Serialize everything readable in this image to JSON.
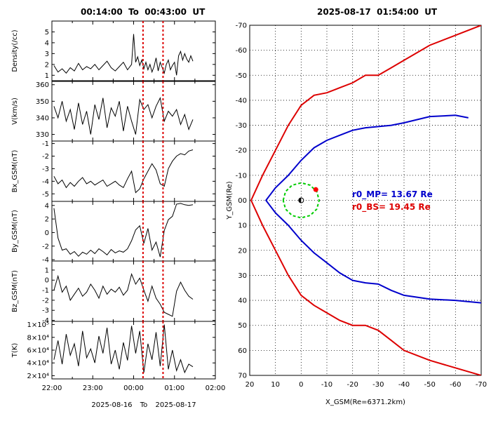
{
  "solar_wind_panel": {
    "title_start": "00:14:00",
    "title_to": "To",
    "title_end": "00:43:00",
    "title_unit": "UT",
    "date_start": "2025-08-16",
    "date_to": "To",
    "date_end": "2025-08-17"
  },
  "magnetosphere_panel": {
    "title_date": "2025-08-17",
    "title_time": "01:54:00",
    "title_unit": "UT",
    "mp_label": "r0_MP= 13.67 Re",
    "bs_label": "r0_BS= 19.45 Re"
  },
  "colors": {
    "magnetopause": "#0000cc",
    "bow_shock": "#dd0000",
    "marker_lines": "#dd0000",
    "orbit": "#00cc00",
    "satellite": "#ff0000",
    "grid": "#000000"
  },
  "chart_data": [
    {
      "type": "line",
      "ylabel": "Density(/cc)",
      "ylim": [
        0.5,
        6
      ],
      "yticks": [
        1,
        2,
        3,
        4,
        5
      ],
      "x_unit": "hours",
      "xlim": [
        22,
        26
      ],
      "xticks": [
        "22:00",
        "23:00",
        "00:00",
        "01:00",
        "02:00"
      ],
      "x_tick_values": [
        22,
        23,
        24,
        25,
        26
      ],
      "markers": [
        24.23,
        24.72
      ],
      "x": [
        22.05,
        22.15,
        22.25,
        22.35,
        22.45,
        22.55,
        22.65,
        22.75,
        22.85,
        22.95,
        23.05,
        23.15,
        23.25,
        23.35,
        23.45,
        23.55,
        23.65,
        23.75,
        23.85,
        23.95,
        24.0,
        24.05,
        24.1,
        24.15,
        24.2,
        24.25,
        24.3,
        24.35,
        24.4,
        24.45,
        24.5,
        24.55,
        24.6,
        24.65,
        24.7,
        24.75,
        24.8,
        24.85,
        24.9,
        24.95,
        25.0,
        25.05,
        25.1,
        25.15,
        25.2,
        25.25,
        25.3,
        25.35,
        25.4,
        25.45
      ],
      "values": [
        1.9,
        1.3,
        1.6,
        1.2,
        1.7,
        1.4,
        2.1,
        1.5,
        1.8,
        1.6,
        2.0,
        1.5,
        1.9,
        2.3,
        1.7,
        1.4,
        1.8,
        2.2,
        1.5,
        2.0,
        4.8,
        2.2,
        2.7,
        1.9,
        2.4,
        1.6,
        2.2,
        1.5,
        2.0,
        1.3,
        1.8,
        2.6,
        1.4,
        2.2,
        1.7,
        1.2,
        2.0,
        2.4,
        1.5,
        1.9,
        2.2,
        1.0,
        2.8,
        3.2,
        2.4,
        3.0,
        2.5,
        2.2,
        2.8,
        2.3
      ]
    },
    {
      "type": "line",
      "ylabel": "V(km/s)",
      "ylim": [
        326,
        362
      ],
      "yticks": [
        330,
        340,
        350,
        360
      ],
      "x_unit": "hours",
      "xlim": [
        22,
        26
      ],
      "markers": [
        24.23,
        24.72
      ],
      "x": [
        22.05,
        22.15,
        22.25,
        22.35,
        22.45,
        22.55,
        22.65,
        22.75,
        22.85,
        22.95,
        23.05,
        23.15,
        23.25,
        23.35,
        23.45,
        23.55,
        23.65,
        23.75,
        23.85,
        23.95,
        24.05,
        24.15,
        24.25,
        24.35,
        24.45,
        24.55,
        24.65,
        24.75,
        24.85,
        24.95,
        25.05,
        25.15,
        25.25,
        25.35,
        25.45
      ],
      "values": [
        347,
        340,
        350,
        338,
        345,
        333,
        349,
        336,
        344,
        330,
        348,
        339,
        352,
        334,
        346,
        341,
        350,
        332,
        347,
        338,
        330,
        351,
        345,
        348,
        340,
        347,
        352,
        338,
        344,
        341,
        345,
        336,
        342,
        333,
        339
      ]
    },
    {
      "type": "line",
      "ylabel": "Bx_GSM(nT)",
      "ylim": [
        -5.6,
        -0.8
      ],
      "yticks": [
        -5,
        -4,
        -3,
        -2,
        -1
      ],
      "x_unit": "hours",
      "xlim": [
        22,
        26
      ],
      "markers": [
        24.23,
        24.72
      ],
      "x": [
        22.05,
        22.15,
        22.25,
        22.35,
        22.45,
        22.55,
        22.65,
        22.75,
        22.85,
        22.95,
        23.05,
        23.15,
        23.25,
        23.35,
        23.45,
        23.55,
        23.65,
        23.75,
        23.85,
        23.95,
        24.05,
        24.15,
        24.25,
        24.35,
        24.45,
        24.55,
        24.65,
        24.75,
        24.85,
        24.95,
        25.05,
        25.15,
        25.25,
        25.35,
        25.45
      ],
      "values": [
        -3.6,
        -4.2,
        -3.9,
        -4.5,
        -4.1,
        -4.4,
        -4.0,
        -3.7,
        -4.2,
        -4.0,
        -4.3,
        -4.1,
        -3.9,
        -4.4,
        -4.2,
        -4.0,
        -4.3,
        -4.5,
        -3.8,
        -3.2,
        -4.9,
        -4.6,
        -3.8,
        -3.2,
        -2.6,
        -3.1,
        -4.2,
        -4.4,
        -3.0,
        -2.4,
        -2.0,
        -1.8,
        -1.9,
        -1.6,
        -1.5
      ]
    },
    {
      "type": "line",
      "ylabel": "By_GSM(nT)",
      "ylim": [
        -4.2,
        4.6
      ],
      "yticks": [
        -4,
        -2,
        0,
        2,
        4
      ],
      "x_unit": "hours",
      "xlim": [
        22,
        26
      ],
      "markers": [
        24.23,
        24.72
      ],
      "x": [
        22.05,
        22.15,
        22.25,
        22.35,
        22.45,
        22.55,
        22.65,
        22.75,
        22.85,
        22.95,
        23.05,
        23.15,
        23.25,
        23.35,
        23.45,
        23.55,
        23.65,
        23.75,
        23.85,
        23.95,
        24.05,
        24.15,
        24.25,
        24.35,
        24.45,
        24.55,
        24.65,
        24.75,
        24.85,
        24.95,
        25.05,
        25.15,
        25.25,
        25.35,
        25.45
      ],
      "values": [
        3.6,
        -0.8,
        -2.6,
        -2.4,
        -3.2,
        -2.8,
        -3.5,
        -2.9,
        -3.2,
        -2.6,
        -3.1,
        -2.4,
        -2.8,
        -3.3,
        -2.5,
        -3.0,
        -2.7,
        -2.9,
        -2.4,
        -1.2,
        0.4,
        1.0,
        -1.6,
        0.6,
        -2.6,
        -1.4,
        -3.6,
        0.3,
        1.9,
        2.4,
        4.2,
        4.3,
        4.1,
        4.0,
        4.1
      ]
    },
    {
      "type": "line",
      "ylabel": "Bz_GSM(nT)",
      "ylim": [
        -4.1,
        1.9
      ],
      "yticks": [
        -4,
        -3,
        -2,
        -1,
        0,
        1
      ],
      "x_unit": "hours",
      "xlim": [
        22,
        26
      ],
      "markers": [
        24.23,
        24.72
      ],
      "x": [
        22.05,
        22.15,
        22.25,
        22.35,
        22.45,
        22.55,
        22.65,
        22.75,
        22.85,
        22.95,
        23.05,
        23.15,
        23.25,
        23.35,
        23.45,
        23.55,
        23.65,
        23.75,
        23.85,
        23.95,
        24.05,
        24.15,
        24.25,
        24.35,
        24.45,
        24.55,
        24.65,
        24.75,
        24.85,
        24.95,
        25.05,
        25.15,
        25.25,
        25.35,
        25.45
      ],
      "values": [
        -1.0,
        0.4,
        -1.2,
        -0.6,
        -2.0,
        -1.4,
        -0.8,
        -1.6,
        -1.2,
        -0.4,
        -1.0,
        -1.8,
        -0.6,
        -1.4,
        -0.9,
        -1.2,
        -0.7,
        -1.5,
        -1.0,
        0.6,
        -0.4,
        0.2,
        -1.0,
        -2.1,
        -0.6,
        -1.8,
        -2.4,
        -3.2,
        -3.4,
        -3.6,
        -1.1,
        -0.2,
        -1.0,
        -1.6,
        -1.9
      ]
    },
    {
      "type": "line",
      "ylabel": "T(K)",
      "ylim": [
        15000,
        105000
      ],
      "yticks": [
        20000,
        40000,
        60000,
        80000,
        100000
      ],
      "ytick_labels": [
        "2×10⁴",
        "4×10⁴",
        "6×10⁴",
        "8×10⁴",
        "1×10⁵"
      ],
      "x_unit": "hours",
      "xlim": [
        22,
        26
      ],
      "markers": [
        24.23,
        24.72
      ],
      "x": [
        22.05,
        22.15,
        22.25,
        22.35,
        22.45,
        22.55,
        22.65,
        22.75,
        22.85,
        22.95,
        23.05,
        23.15,
        23.25,
        23.35,
        23.45,
        23.55,
        23.65,
        23.75,
        23.85,
        23.95,
        24.05,
        24.15,
        24.25,
        24.35,
        24.45,
        24.55,
        24.65,
        24.75,
        24.85,
        24.95,
        25.05,
        25.15,
        25.25,
        25.35,
        25.45
      ],
      "values": [
        45000,
        75000,
        38000,
        85000,
        52000,
        70000,
        35000,
        90000,
        48000,
        62000,
        40000,
        82000,
        55000,
        95000,
        38000,
        60000,
        30000,
        72000,
        44000,
        98000,
        55000,
        90000,
        25000,
        70000,
        45000,
        88000,
        35000,
        100000,
        30000,
        60000,
        28000,
        45000,
        25000,
        38000,
        34000
      ]
    },
    {
      "type": "line",
      "xlabel": "X_GSM(Re=6371.2km)",
      "ylabel": "Y_GSM(Re)",
      "xlim": [
        20,
        -70
      ],
      "ylim": [
        -70,
        70
      ],
      "xticks": [
        20,
        10,
        0,
        -10,
        -20,
        -30,
        -40,
        -50,
        -60,
        -70
      ],
      "xtick_labels": [
        "20",
        "10",
        "0",
        "-10",
        "-20",
        "-30",
        "-40",
        "-50",
        "-60",
        "-70"
      ],
      "yticks": [
        -70,
        -60,
        -50,
        -40,
        -30,
        -20,
        -10,
        0,
        10,
        20,
        30,
        40,
        50,
        60,
        70
      ],
      "ytick_labels": [
        "-70",
        "-60",
        "-50",
        "-40",
        "-30",
        "-20",
        "-10",
        "00",
        "10",
        "20",
        "30",
        "40",
        "50",
        "60",
        "70"
      ],
      "grid": true,
      "series": [
        {
          "label": "r0_MP= 13.67 Re",
          "x": [
            -65,
            -60,
            -50,
            -40,
            -35,
            -30,
            -25,
            -20,
            -15,
            -10,
            -5,
            0,
            5,
            10,
            13.67,
            10,
            5,
            0,
            -5,
            -10,
            -15,
            -20,
            -25,
            -30,
            -35,
            -40,
            -50,
            -60,
            -70
          ],
          "y": [
            -33,
            -34,
            -33.5,
            -31,
            -30,
            -29.5,
            -29,
            -28,
            -26,
            -24,
            -21,
            -16,
            -10,
            -5,
            0,
            5,
            10,
            16,
            21,
            25,
            29,
            32,
            33,
            33.5,
            36,
            38,
            39.5,
            40,
            41
          ]
        },
        {
          "label": "r0_BS= 19.45 Re",
          "x": [
            -70,
            -60,
            -50,
            -40,
            -35,
            -30,
            -25,
            -20,
            -15,
            -10,
            -5,
            0,
            5,
            10,
            15,
            19.45,
            15,
            10,
            5,
            0,
            -5,
            -10,
            -15,
            -20,
            -25,
            -30,
            -35,
            -40,
            -50,
            -60,
            -70
          ],
          "y": [
            -70,
            -66,
            -62,
            -56,
            -53,
            -50,
            -50,
            -47,
            -45,
            -43,
            -42,
            -38,
            -30,
            -20,
            -10,
            0,
            10,
            20,
            30,
            38,
            42,
            45,
            48,
            50,
            50,
            52,
            56,
            60,
            64,
            67,
            70
          ]
        },
        {
          "x": [
            7,
            6.06,
            3.5,
            0,
            -3.5,
            -6.06,
            -7,
            -6.06,
            -3.5,
            0,
            3.5,
            6.06,
            7
          ],
          "y": [
            0,
            -3.5,
            -6.06,
            -7,
            -6.06,
            -3.5,
            0,
            3.5,
            6.06,
            7,
            6.06,
            3.5,
            0
          ]
        }
      ],
      "satellite": {
        "x": -5.7,
        "y": -4.3
      },
      "earth": {
        "x": 0,
        "y": 0
      }
    }
  ]
}
